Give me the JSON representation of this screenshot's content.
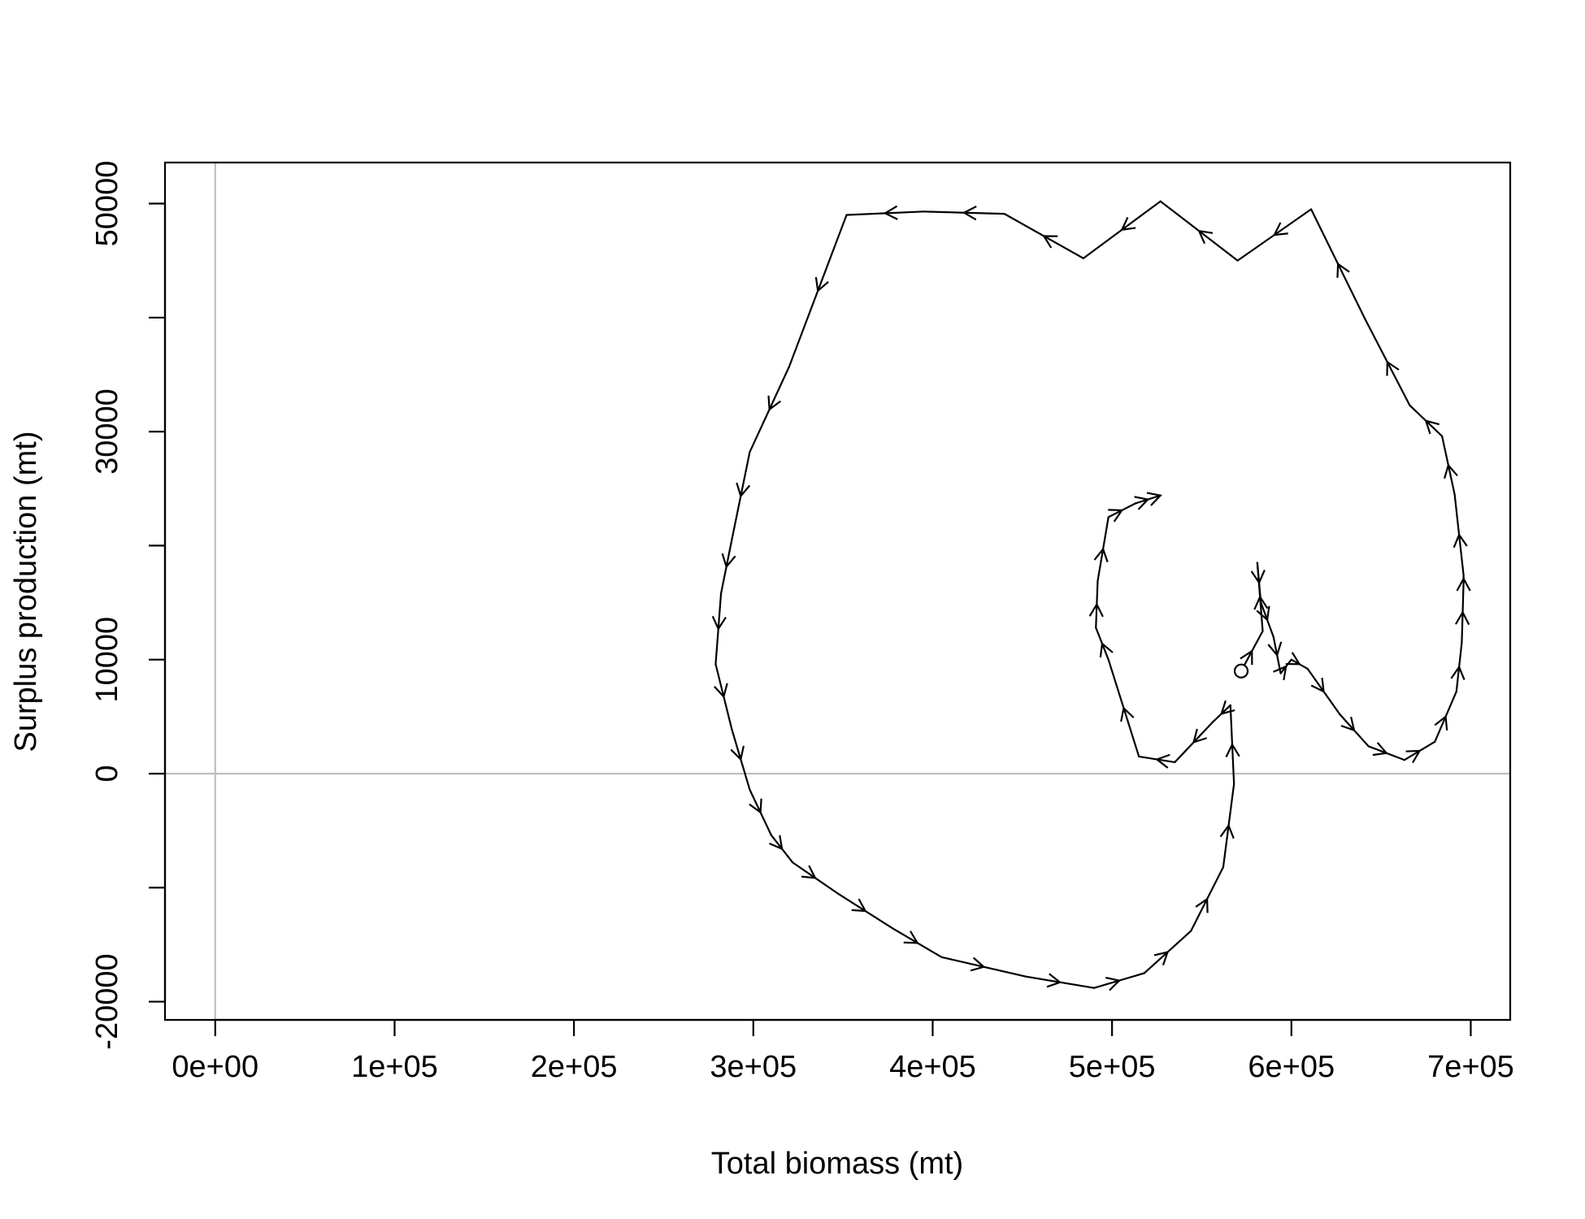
{
  "chart_data": {
    "type": "line",
    "title": "",
    "xlabel": "Total biomass (mt)",
    "ylabel": "Surplus production (mt)",
    "xlim": [
      -28000,
      722000
    ],
    "ylim": [
      -21600,
      53600
    ],
    "x_ticks": [
      0,
      100000,
      200000,
      300000,
      400000,
      500000,
      600000,
      700000
    ],
    "x_tick_labels": [
      "0e+00",
      "1e+05",
      "2e+05",
      "3e+05",
      "4e+05",
      "5e+05",
      "6e+05",
      "7e+05"
    ],
    "y_ticks": [
      -20000,
      -10000,
      0,
      10000,
      20000,
      30000,
      40000,
      50000
    ],
    "y_tick_labels": [
      "-20000",
      "",
      "0",
      "10000",
      "",
      "30000",
      "",
      "50000"
    ],
    "reference_lines": {
      "x": 0,
      "y": 0,
      "color": "#bebebe"
    },
    "grid": false,
    "legend": "none",
    "line_color": "#000000",
    "start_marker": "open-circle",
    "series": [
      {
        "x": [
          572000,
          584000,
          581000,
          583000,
          590000,
          594000,
          600000,
          609000,
          627000,
          643000,
          663000,
          680000,
          692000,
          695000,
          696000,
          696000,
          691000,
          684000,
          666000,
          641000,
          611000,
          570000,
          527000,
          484000,
          440000,
          395000,
          352000,
          320000,
          298000,
          288000,
          282000,
          279000,
          288000,
          298000,
          310000,
          322000,
          347000,
          378000,
          405000,
          452000,
          490000,
          518000,
          544000,
          562000,
          568000,
          566000,
          556000,
          535000,
          515000,
          498000,
          491000,
          492000,
          498000,
          513000,
          527000
        ],
        "y": [
          9000,
          12500,
          18500,
          15000,
          12000,
          8800,
          10000,
          9200,
          5200,
          2400,
          1200,
          2800,
          7200,
          11500,
          16800,
          17400,
          24500,
          29600,
          32300,
          39900,
          49500,
          45000,
          50200,
          45200,
          49100,
          49300,
          49000,
          35700,
          28200,
          20500,
          15800,
          9600,
          3900,
          -1400,
          -5400,
          -7800,
          -10500,
          -13600,
          -16100,
          -17800,
          -18800,
          -17500,
          -13800,
          -8200,
          -900,
          6000,
          4500,
          1000,
          1500,
          10000,
          12800,
          16900,
          22500,
          23700,
          24400
        ]
      }
    ]
  }
}
